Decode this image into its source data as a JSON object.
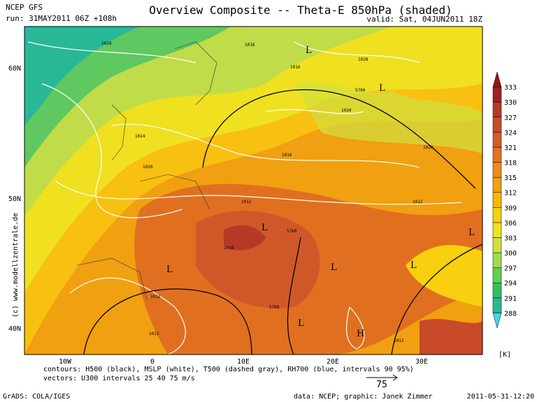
{
  "header": {
    "source": "NCEP GFS",
    "run": "run: 31MAY2011 06Z +108h",
    "title": "Overview Composite -- Theta-E 850hPa (shaded)",
    "valid": "valid: Sat, 04JUN2011 18Z"
  },
  "map": {
    "lat_labels": [
      "60N",
      "50N",
      "40N"
    ],
    "lon_labels": [
      "10W",
      "0",
      "10E",
      "20E",
      "30E"
    ],
    "pressure_labels": [
      "1028",
      "1016",
      "1016",
      "1028",
      "1024",
      "1020",
      "1020",
      "1016",
      "1012",
      "1012",
      "1016",
      "1012",
      "1012",
      "1012",
      "1020"
    ],
    "height_labels": [
      "5760",
      "5760",
      "5760"
    ],
    "systems": [
      "L",
      "L",
      "L",
      "L",
      "L",
      "L",
      "L",
      "L",
      "H"
    ]
  },
  "colorbar": {
    "levels": [
      288,
      291,
      294,
      297,
      300,
      303,
      306,
      309,
      312,
      315,
      318,
      321,
      324,
      327,
      330,
      333
    ],
    "colors": [
      "#40d8e8",
      "#28b890",
      "#30c060",
      "#60d050",
      "#a0dc50",
      "#d0e040",
      "#f0e020",
      "#f8d010",
      "#f8b800",
      "#f0a010",
      "#f08a18",
      "#e87020",
      "#d85a28",
      "#c84a28",
      "#b83828",
      "#a02020",
      "#901818"
    ],
    "unit": "[K]"
  },
  "footer": {
    "contours": "contours: H500 (black), MSLP (white), T500 (dashed gray), RH700 (blue, intervals 90 95%)",
    "vectors": "vectors: U300 intervals 25 40 75 m/s",
    "vector_scale": "75",
    "grads": "GrADS: COLA/IGES",
    "credit": "data: NCEP; graphic: Janek Zimmer",
    "timestamp": "2011-05-31-12:20",
    "copyright": "(c) www.modellzentrale.de"
  }
}
